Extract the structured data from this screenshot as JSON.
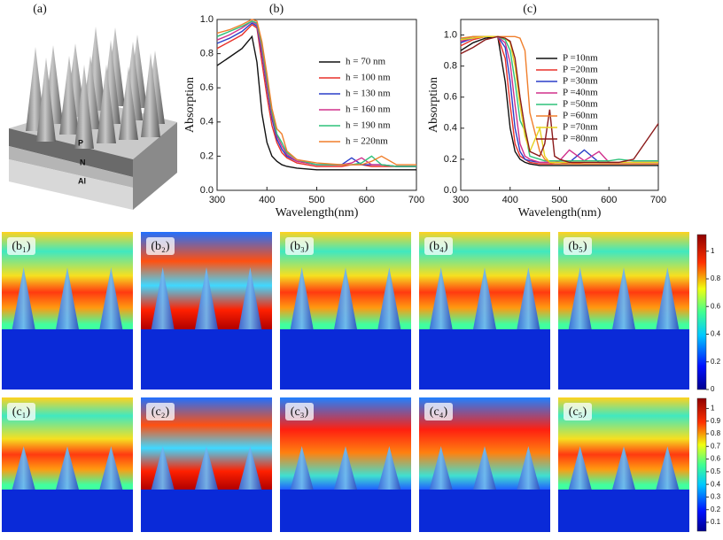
{
  "panel_labels": [
    "(a)",
    "(b)",
    "(c)"
  ],
  "schematic": {
    "layers": [
      "P",
      "N",
      "Al"
    ]
  },
  "chart_data": [
    {
      "type": "line",
      "x_label": "Wavelength(nm)",
      "y_label": "Absorption",
      "x": [
        300,
        325,
        350,
        370,
        380,
        390,
        400,
        410,
        420,
        430,
        440,
        460,
        500,
        550,
        570,
        590,
        610,
        630,
        660,
        700
      ],
      "xlim": [
        300,
        700
      ],
      "xticks": [
        300,
        400,
        500,
        600,
        700
      ],
      "ylim": [
        0,
        1.0
      ],
      "yticks": [
        {
          "value": 0,
          "label": "0.0"
        },
        0.2,
        0.4,
        0.6,
        0.8,
        {
          "value": 1,
          "label": "1.0"
        }
      ],
      "legend": "upper right",
      "series": [
        {
          "name": "h = 70 nm",
          "color": "#111111",
          "values": [
            0.73,
            0.78,
            0.83,
            0.9,
            0.75,
            0.45,
            0.28,
            0.2,
            0.17,
            0.15,
            0.14,
            0.13,
            0.12,
            0.12,
            0.12,
            0.12,
            0.12,
            0.12,
            0.12,
            0.12
          ]
        },
        {
          "name": "h = 100 nm",
          "color": "#e8312a",
          "values": [
            0.83,
            0.87,
            0.91,
            0.97,
            0.95,
            0.75,
            0.55,
            0.38,
            0.28,
            0.22,
            0.19,
            0.16,
            0.14,
            0.14,
            0.15,
            0.15,
            0.14,
            0.14,
            0.14,
            0.14
          ]
        },
        {
          "name": "h = 130 nm",
          "color": "#2a3fc8",
          "values": [
            0.86,
            0.89,
            0.93,
            0.98,
            0.96,
            0.8,
            0.6,
            0.42,
            0.3,
            0.24,
            0.2,
            0.17,
            0.15,
            0.15,
            0.19,
            0.15,
            0.15,
            0.15,
            0.14,
            0.14
          ]
        },
        {
          "name": "h = 160 nm",
          "color": "#d0308c",
          "values": [
            0.88,
            0.91,
            0.95,
            0.99,
            0.97,
            0.82,
            0.62,
            0.44,
            0.32,
            0.26,
            0.21,
            0.17,
            0.15,
            0.15,
            0.16,
            0.19,
            0.15,
            0.15,
            0.14,
            0.14
          ]
        },
        {
          "name": "h = 190 nm",
          "color": "#2ec27a",
          "values": [
            0.9,
            0.93,
            0.96,
            0.99,
            0.98,
            0.85,
            0.65,
            0.46,
            0.33,
            0.28,
            0.22,
            0.18,
            0.15,
            0.15,
            0.15,
            0.16,
            0.2,
            0.15,
            0.14,
            0.14
          ]
        },
        {
          "name": "h = 220nm",
          "color": "#f07f2c",
          "values": [
            0.92,
            0.94,
            0.97,
            1.0,
            0.99,
            0.87,
            0.68,
            0.48,
            0.36,
            0.33,
            0.23,
            0.18,
            0.16,
            0.15,
            0.15,
            0.15,
            0.17,
            0.2,
            0.15,
            0.15
          ]
        }
      ]
    },
    {
      "type": "line",
      "x_label": "Wavelength(nm)",
      "y_label": "Absorption",
      "x": [
        300,
        325,
        350,
        375,
        390,
        400,
        410,
        420,
        430,
        440,
        460,
        470,
        480,
        490,
        500,
        520,
        550,
        580,
        600,
        620,
        650,
        700
      ],
      "xlim": [
        300,
        700
      ],
      "xticks": [
        300,
        400,
        500,
        600,
        700
      ],
      "ylim": [
        0,
        1.1
      ],
      "yticks": [
        {
          "value": 0,
          "label": "0.0"
        },
        0.2,
        0.4,
        0.6,
        0.8,
        {
          "value": 1,
          "label": "1.0"
        }
      ],
      "legend": "upper right",
      "series": [
        {
          "name": "P =10nm",
          "color": "#111111",
          "values": [
            0.9,
            0.95,
            0.98,
            0.99,
            0.7,
            0.4,
            0.25,
            0.2,
            0.18,
            0.17,
            0.16,
            0.16,
            0.16,
            0.16,
            0.16,
            0.16,
            0.16,
            0.16,
            0.16,
            0.16,
            0.16,
            0.16
          ]
        },
        {
          "name": "P =20nm",
          "color": "#e8312a",
          "values": [
            0.93,
            0.97,
            0.99,
            0.99,
            0.85,
            0.55,
            0.3,
            0.22,
            0.2,
            0.18,
            0.17,
            0.17,
            0.17,
            0.17,
            0.17,
            0.18,
            0.17,
            0.17,
            0.17,
            0.17,
            0.17,
            0.17
          ]
        },
        {
          "name": "P =30nm",
          "color": "#2a3fc8",
          "values": [
            0.95,
            0.98,
            0.99,
            0.99,
            0.92,
            0.7,
            0.4,
            0.25,
            0.2,
            0.19,
            0.18,
            0.18,
            0.18,
            0.18,
            0.18,
            0.18,
            0.26,
            0.18,
            0.18,
            0.18,
            0.18,
            0.18
          ]
        },
        {
          "name": "P =40nm",
          "color": "#d0308c",
          "values": [
            0.96,
            0.98,
            0.99,
            0.99,
            0.95,
            0.82,
            0.55,
            0.3,
            0.22,
            0.2,
            0.18,
            0.18,
            0.18,
            0.18,
            0.19,
            0.26,
            0.19,
            0.25,
            0.18,
            0.18,
            0.18,
            0.18
          ]
        },
        {
          "name": "P =50nm",
          "color": "#2ec27a",
          "values": [
            0.97,
            0.99,
            0.99,
            0.99,
            0.97,
            0.9,
            0.7,
            0.45,
            0.38,
            0.22,
            0.2,
            0.19,
            0.19,
            0.19,
            0.19,
            0.19,
            0.19,
            0.19,
            0.19,
            0.2,
            0.19,
            0.19
          ]
        },
        {
          "name": "P =60nm",
          "color": "#f07f2c",
          "values": [
            0.98,
            0.99,
            0.99,
            0.99,
            0.99,
            0.99,
            0.99,
            0.98,
            0.9,
            0.5,
            0.25,
            0.2,
            0.18,
            0.17,
            0.17,
            0.17,
            0.17,
            0.17,
            0.17,
            0.17,
            0.17,
            0.17
          ]
        },
        {
          "name": "P =70nm",
          "color": "#e6d21e",
          "values": [
            0.97,
            0.98,
            0.99,
            0.99,
            0.98,
            0.95,
            0.8,
            0.55,
            0.35,
            0.25,
            0.4,
            0.22,
            0.18,
            0.18,
            0.18,
            0.18,
            0.18,
            0.18,
            0.18,
            0.18,
            0.18,
            0.18
          ]
        },
        {
          "name": "P =80nm",
          "color": "#8b1a1a",
          "values": [
            0.88,
            0.92,
            0.97,
            0.99,
            0.98,
            0.96,
            0.85,
            0.6,
            0.4,
            0.25,
            0.22,
            0.3,
            0.52,
            0.22,
            0.2,
            0.18,
            0.18,
            0.18,
            0.18,
            0.18,
            0.2,
            0.43
          ]
        }
      ]
    }
  ],
  "field_maps": {
    "rows": [
      [
        "(b₁)",
        "(b₂)",
        "(b₃)",
        "(b₄)",
        "(b₅)"
      ],
      [
        "(c₁)",
        "(c₂)",
        "(c₃)",
        "(c₄)",
        "(c₅)"
      ]
    ]
  },
  "colorbars": [
    {
      "lim": [
        0,
        1.12
      ],
      "ticks": [
        0,
        0.2,
        0.4,
        0.6,
        0.8,
        1
      ]
    },
    {
      "lim": [
        0.03,
        1.08
      ],
      "ticks": [
        0.1,
        0.2,
        0.3,
        0.4,
        0.5,
        0.6,
        0.7,
        0.8,
        0.9,
        1
      ]
    }
  ]
}
